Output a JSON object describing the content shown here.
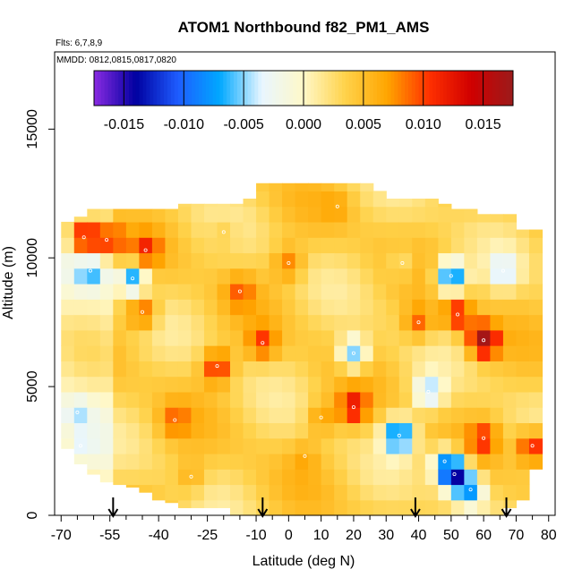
{
  "chart_data": {
    "type": "heatmap",
    "title": "ATOM1 Northbound f82_PM1_AMS",
    "subtitle_flights": "Flts: 6,7,8,9",
    "subtitle_dates": "MMDD: 0812,0815,0817,0820",
    "xlabel": "Latitude (deg N)",
    "ylabel": "Altitude (m)",
    "xlim": [
      -72,
      82
    ],
    "ylim": [
      0,
      18000
    ],
    "x_ticks": [
      -70,
      -55,
      -40,
      -25,
      -10,
      0,
      10,
      20,
      30,
      40,
      50,
      60,
      70,
      80
    ],
    "x_tick_labels": [
      "-70",
      "-55",
      "-40",
      "-25",
      "-10",
      "0",
      "10",
      "20",
      "30",
      "40",
      "50",
      "60",
      "70",
      "80"
    ],
    "x_minor_ticks": [
      -65,
      -60,
      -50,
      -45,
      -35,
      -30,
      -20,
      -15,
      -5,
      5,
      15,
      25,
      35,
      45,
      55,
      65,
      75
    ],
    "y_ticks": [
      0,
      5000,
      10000,
      15000
    ],
    "y_tick_labels": [
      "0",
      "5000",
      "10000",
      "15000"
    ],
    "colorbar": {
      "range": [
        -0.0175,
        0.0175
      ],
      "ticks": [
        -0.015,
        -0.01,
        -0.005,
        0.0,
        0.005,
        0.01,
        0.015
      ],
      "tick_labels": [
        "-0.015",
        "-0.010",
        "-0.005",
        "0.000",
        "0.005",
        "0.010",
        "0.015"
      ],
      "colors": [
        "#8a2be2",
        "#0000a0",
        "#1e5cff",
        "#00a8ff",
        "#e8f6ff",
        "#fff8c8",
        "#ffd24a",
        "#ffa500",
        "#ff3000",
        "#d00000",
        "#9b1b1b"
      ]
    },
    "profile_latitudes": [
      -54,
      -8,
      39,
      67
    ],
    "lat_bins": [
      -68,
      -64,
      -60,
      -56,
      -52,
      -48,
      -44,
      -40,
      -36,
      -32,
      -28,
      -24,
      -20,
      -16,
      -12,
      -8,
      -4,
      0,
      4,
      8,
      12,
      16,
      20,
      24,
      28,
      32,
      36,
      40,
      44,
      48,
      52,
      56,
      60,
      64,
      68,
      72,
      76
    ],
    "alt_bins": [
      300,
      900,
      1500,
      2100,
      2700,
      3300,
      3900,
      4500,
      5100,
      5700,
      6300,
      6900,
      7500,
      8100,
      8700,
      9300,
      9900,
      10500,
      11100,
      11700,
      12300,
      12900
    ],
    "features": [
      {
        "lat": -63,
        "alt": 10800,
        "value": 0.013
      },
      {
        "lat": -56,
        "alt": 10700,
        "value": 0.009
      },
      {
        "lat": -44,
        "alt": 10300,
        "value": 0.006
      },
      {
        "lat": -61,
        "alt": 9500,
        "value": -0.006
      },
      {
        "lat": -48,
        "alt": 9200,
        "value": -0.011
      },
      {
        "lat": -45,
        "alt": 7900,
        "value": 0.007
      },
      {
        "lat": -22,
        "alt": 5800,
        "value": 0.008
      },
      {
        "lat": -8,
        "alt": 6700,
        "value": 0.006
      },
      {
        "lat": 20,
        "alt": 6300,
        "value": -0.01
      },
      {
        "lat": 20,
        "alt": 4200,
        "value": 0.008
      },
      {
        "lat": 34,
        "alt": 3100,
        "value": -0.013
      },
      {
        "lat": 43,
        "alt": 4800,
        "value": -0.008
      },
      {
        "lat": 51,
        "alt": 1600,
        "value": -0.016
      },
      {
        "lat": 56,
        "alt": 1000,
        "value": -0.01
      },
      {
        "lat": 48,
        "alt": 2100,
        "value": -0.007
      },
      {
        "lat": 60,
        "alt": 6800,
        "value": 0.013
      },
      {
        "lat": 52,
        "alt": 7800,
        "value": 0.008
      },
      {
        "lat": 66,
        "alt": 9500,
        "value": -0.007
      },
      {
        "lat": 50,
        "alt": 9300,
        "value": -0.013
      },
      {
        "lat": 35,
        "alt": 9800,
        "value": -0.003
      },
      {
        "lat": 75,
        "alt": 2700,
        "value": 0.009
      },
      {
        "lat": 60,
        "alt": 3000,
        "value": 0.006
      },
      {
        "lat": -65,
        "alt": 4000,
        "value": -0.004
      },
      {
        "lat": -64,
        "alt": 2700,
        "value": -0.003
      },
      {
        "lat": -30,
        "alt": 1500,
        "value": 0.003
      },
      {
        "lat": 5,
        "alt": 2300,
        "value": 0.002
      },
      {
        "lat": 10,
        "alt": 3800,
        "value": 0.004
      },
      {
        "lat": -35,
        "alt": 3700,
        "value": 0.004
      },
      {
        "lat": -15,
        "alt": 8700,
        "value": 0.004
      },
      {
        "lat": 40,
        "alt": 7500,
        "value": 0.006
      },
      {
        "lat": -20,
        "alt": 11000,
        "value": 0.002
      },
      {
        "lat": 15,
        "alt": 12000,
        "value": 0.002
      },
      {
        "lat": 0,
        "alt": 9800,
        "value": 0.005
      }
    ],
    "upper_edge": [
      [
        -68,
        11400
      ],
      [
        -64,
        11600
      ],
      [
        -60,
        11900
      ],
      [
        -56,
        11900
      ],
      [
        -52,
        11900
      ],
      [
        -48,
        11900
      ],
      [
        -44,
        11900
      ],
      [
        -40,
        11900
      ],
      [
        -36,
        11900
      ],
      [
        -32,
        12100
      ],
      [
        -28,
        12100
      ],
      [
        -24,
        12100
      ],
      [
        -20,
        12100
      ],
      [
        -16,
        12100
      ],
      [
        -12,
        12300
      ],
      [
        -8,
        12900
      ],
      [
        -4,
        12900
      ],
      [
        0,
        12900
      ],
      [
        4,
        12900
      ],
      [
        8,
        12900
      ],
      [
        12,
        12900
      ],
      [
        16,
        12900
      ],
      [
        20,
        12900
      ],
      [
        24,
        12900
      ],
      [
        28,
        12600
      ],
      [
        32,
        12300
      ],
      [
        36,
        12300
      ],
      [
        40,
        12300
      ],
      [
        44,
        12300
      ],
      [
        48,
        12100
      ],
      [
        52,
        11900
      ],
      [
        56,
        11900
      ],
      [
        60,
        11700
      ],
      [
        64,
        11700
      ],
      [
        68,
        11700
      ],
      [
        72,
        11100
      ],
      [
        76,
        11100
      ]
    ],
    "lower_edge": [
      [
        -68,
        2600
      ],
      [
        -64,
        2000
      ],
      [
        -60,
        1600
      ],
      [
        -56,
        1300
      ],
      [
        -52,
        1200
      ],
      [
        -48,
        1100
      ],
      [
        -44,
        900
      ],
      [
        -40,
        600
      ],
      [
        -36,
        500
      ],
      [
        -32,
        300
      ],
      [
        -28,
        300
      ],
      [
        -24,
        300
      ],
      [
        -20,
        300
      ],
      [
        -16,
        0
      ],
      [
        -12,
        0
      ],
      [
        -8,
        0
      ],
      [
        -4,
        0
      ],
      [
        0,
        0
      ],
      [
        4,
        0
      ],
      [
        8,
        0
      ],
      [
        12,
        0
      ],
      [
        16,
        0
      ],
      [
        20,
        0
      ],
      [
        24,
        0
      ],
      [
        28,
        0
      ],
      [
        32,
        0
      ],
      [
        36,
        0
      ],
      [
        40,
        0
      ],
      [
        44,
        0
      ],
      [
        48,
        0
      ],
      [
        52,
        0
      ],
      [
        56,
        0
      ],
      [
        60,
        0
      ],
      [
        64,
        0
      ],
      [
        68,
        300
      ],
      [
        72,
        600
      ],
      [
        76,
        1800
      ]
    ]
  }
}
